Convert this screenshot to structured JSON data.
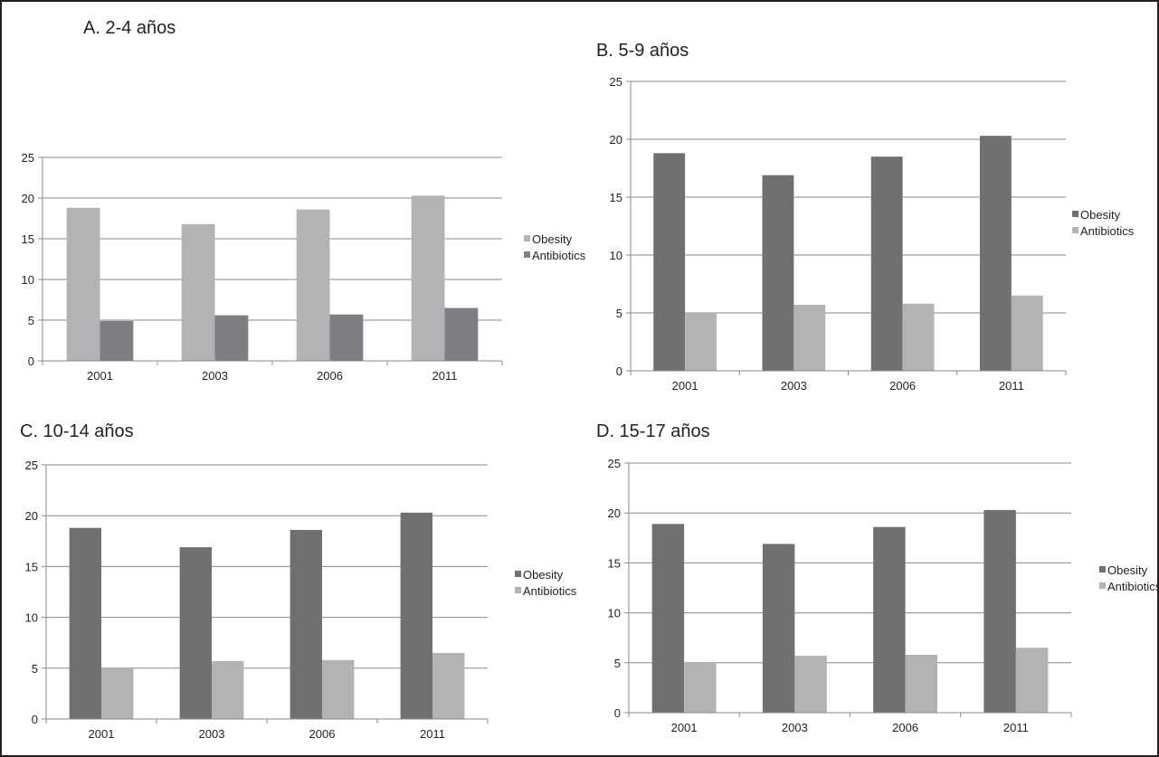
{
  "chart_data": [
    {
      "type": "bar",
      "title": "A. 2-4 años",
      "categories": [
        "2001",
        "2003",
        "2006",
        "2011"
      ],
      "series": [
        {
          "name": "Obesity",
          "values": [
            18.8,
            16.8,
            18.6,
            20.3
          ],
          "color": "#b2b3b5"
        },
        {
          "name": "Antibiotics",
          "values": [
            4.9,
            5.6,
            5.7,
            6.5
          ],
          "color": "#7e7f82"
        }
      ],
      "ylim": [
        0,
        25
      ],
      "yticks": [
        "0",
        "5",
        "10",
        "15",
        "20",
        "25"
      ],
      "grid": true,
      "legend": "right"
    },
    {
      "type": "bar",
      "title": "B. 5-9 años",
      "categories": [
        "2001",
        "2003",
        "2006",
        "2011"
      ],
      "series": [
        {
          "name": "Obesity",
          "values": [
            18.8,
            16.9,
            18.5,
            20.3
          ],
          "color": "#707073"
        },
        {
          "name": "Antibiotics",
          "values": [
            5.0,
            5.7,
            5.8,
            6.5
          ],
          "color": "#b2b3b5"
        }
      ],
      "ylim": [
        0,
        25
      ],
      "yticks": [
        "0",
        "5",
        "10",
        "15",
        "20",
        "25"
      ],
      "grid": true,
      "legend": "right"
    },
    {
      "type": "bar",
      "title": "C. 10-14 años",
      "categories": [
        "2001",
        "2003",
        "2006",
        "2011"
      ],
      "series": [
        {
          "name": "Obesity",
          "values": [
            18.8,
            16.9,
            18.6,
            20.3
          ],
          "color": "#707073"
        },
        {
          "name": "Antibiotics",
          "values": [
            5.0,
            5.7,
            5.8,
            6.5
          ],
          "color": "#b2b3b5"
        }
      ],
      "ylim": [
        0,
        25
      ],
      "yticks": [
        "0",
        "5",
        "10",
        "15",
        "20",
        "25"
      ],
      "grid": true,
      "legend": "right"
    },
    {
      "type": "bar",
      "title": "D. 15-17 años",
      "categories": [
        "2001",
        "2003",
        "2006",
        "2011"
      ],
      "series": [
        {
          "name": "Obesity",
          "values": [
            18.9,
            16.9,
            18.6,
            20.3
          ],
          "color": "#707073"
        },
        {
          "name": "Antibiotics",
          "values": [
            5.0,
            5.7,
            5.8,
            6.5
          ],
          "color": "#b2b3b5"
        }
      ],
      "ylim": [
        0,
        25
      ],
      "yticks": [
        "0",
        "5",
        "10",
        "15",
        "20",
        "25"
      ],
      "grid": true,
      "legend": "right"
    }
  ]
}
